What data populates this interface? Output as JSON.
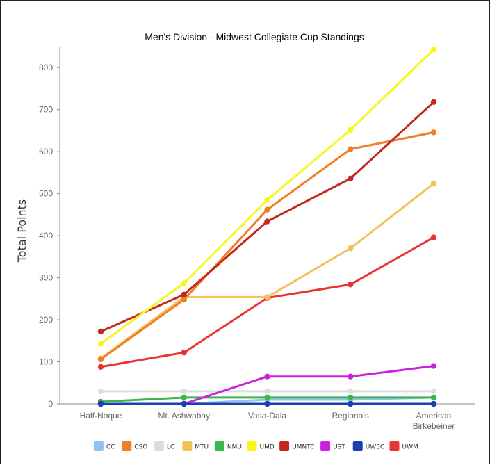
{
  "chart_data": {
    "type": "line",
    "title": "Men's Division - Midwest Collegiate Cup Standings",
    "xlabel": "",
    "ylabel": "Total Points",
    "categories": [
      "Half-Noque",
      "Mt. Ashwabay",
      "Vasa-Dala",
      "Regionals",
      "American Birkebeiner"
    ],
    "category_lines": [
      [
        "Half-Noque"
      ],
      [
        "Mt. Ashwabay"
      ],
      [
        "Vasa-Dala"
      ],
      [
        "Regionals"
      ],
      [
        "American",
        "Birkebeiner"
      ]
    ],
    "ylim": [
      0,
      850
    ],
    "yticks": [
      0,
      100,
      200,
      300,
      400,
      500,
      600,
      700,
      800
    ],
    "grid": false,
    "legend": "bottom",
    "series": [
      {
        "name": "LC",
        "color": "#dddddd",
        "values": [
          30,
          30,
          30,
          30,
          30
        ]
      },
      {
        "name": "CC",
        "color": "#8ec3f2",
        "values": [
          0,
          0,
          10,
          10,
          15
        ]
      },
      {
        "name": "NMU",
        "color": "#3cb54a",
        "values": [
          5,
          15,
          15,
          15,
          15
        ]
      },
      {
        "name": "UST",
        "color": "#cc22dd",
        "values": [
          0,
          0,
          65,
          65,
          90
        ]
      },
      {
        "name": "UWEC",
        "color": "#1b3fae",
        "values": [
          0,
          0,
          0,
          0,
          0
        ]
      },
      {
        "name": "UWM",
        "color": "#e83434",
        "values": [
          88,
          122,
          252,
          284,
          396
        ]
      },
      {
        "name": "MTU",
        "color": "#f5c05a",
        "values": [
          108,
          254,
          254,
          370,
          524
        ]
      },
      {
        "name": "CSO",
        "color": "#f07e27",
        "values": [
          106,
          248,
          462,
          606,
          646
        ]
      },
      {
        "name": "UMNTC",
        "color": "#c4281a",
        "values": [
          172,
          260,
          434,
          536,
          718
        ]
      },
      {
        "name": "UMD",
        "color": "#f7f71b",
        "values": [
          143,
          287,
          485,
          652,
          843
        ]
      }
    ],
    "legend_order": [
      "CC",
      "CSO",
      "LC",
      "MTU",
      "NMU",
      "UMD",
      "UMNTC",
      "UST",
      "UWEC",
      "UWM"
    ]
  }
}
